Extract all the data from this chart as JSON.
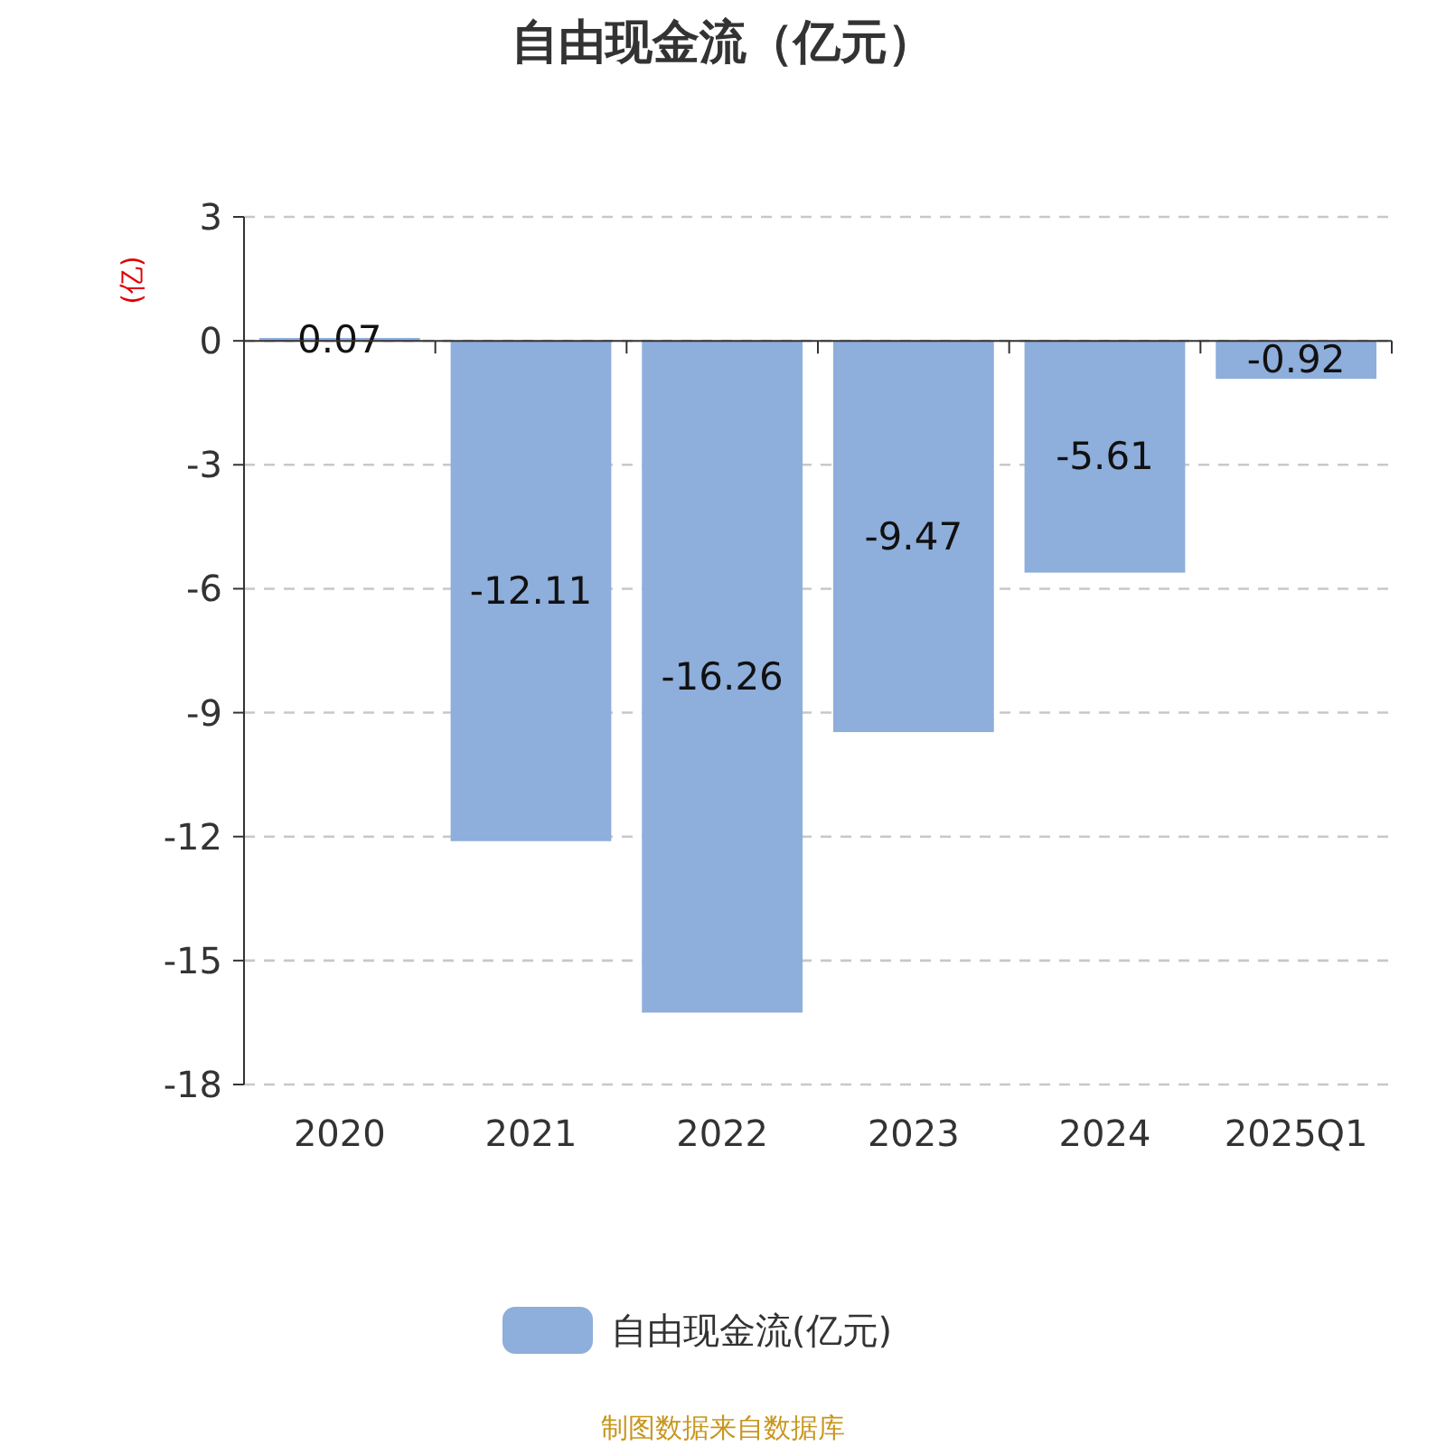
{
  "chart_data": {
    "type": "bar",
    "title": "自由现金流（亿元）",
    "ylabel": "(亿)",
    "categories": [
      "2020",
      "2021",
      "2022",
      "2023",
      "2024",
      "2025Q1"
    ],
    "series": [
      {
        "name": "自由现金流(亿元)",
        "color": "#8eaedb",
        "values": [
          0.07,
          -12.11,
          -16.26,
          -9.47,
          -5.61,
          -0.92
        ]
      }
    ],
    "ylim": [
      -18,
      3
    ],
    "yticks": [
      3,
      0,
      -3,
      -6,
      -9,
      -12,
      -15,
      -18
    ],
    "grid": "y",
    "legend": "bottom",
    "data_labels": true,
    "annotations": [
      "制图数据来自数据库"
    ]
  }
}
